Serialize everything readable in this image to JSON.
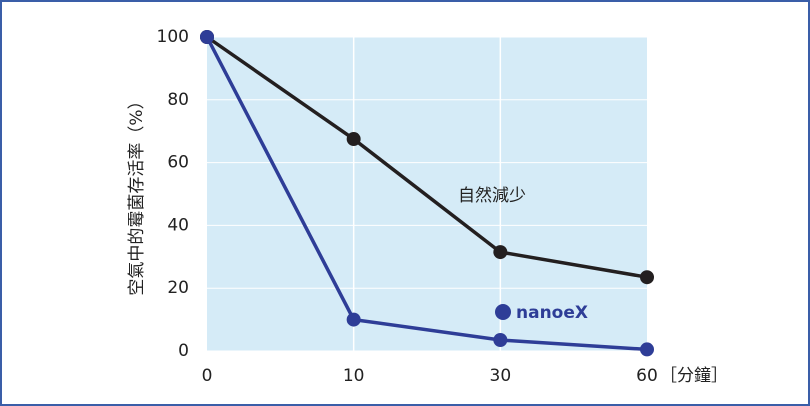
{
  "chart_data": {
    "type": "line",
    "y_label": "空氣中的霉菌存活率（%）",
    "x_label": "［分鐘］",
    "categories": [
      "0",
      "10",
      "30",
      "60"
    ],
    "series": [
      {
        "name": "自然減少",
        "color": "#231f20",
        "values": [
          100,
          67.5,
          31.5,
          23.5
        ]
      },
      {
        "name": "nanoeX",
        "color": "#2e3d97",
        "values": [
          100,
          10,
          3.5,
          0.5
        ]
      }
    ],
    "ylim": [
      0,
      100
    ],
    "yticks": [
      0,
      20,
      40,
      60,
      80,
      100
    ],
    "grid": true,
    "plot_background": "#d5ebf7"
  }
}
